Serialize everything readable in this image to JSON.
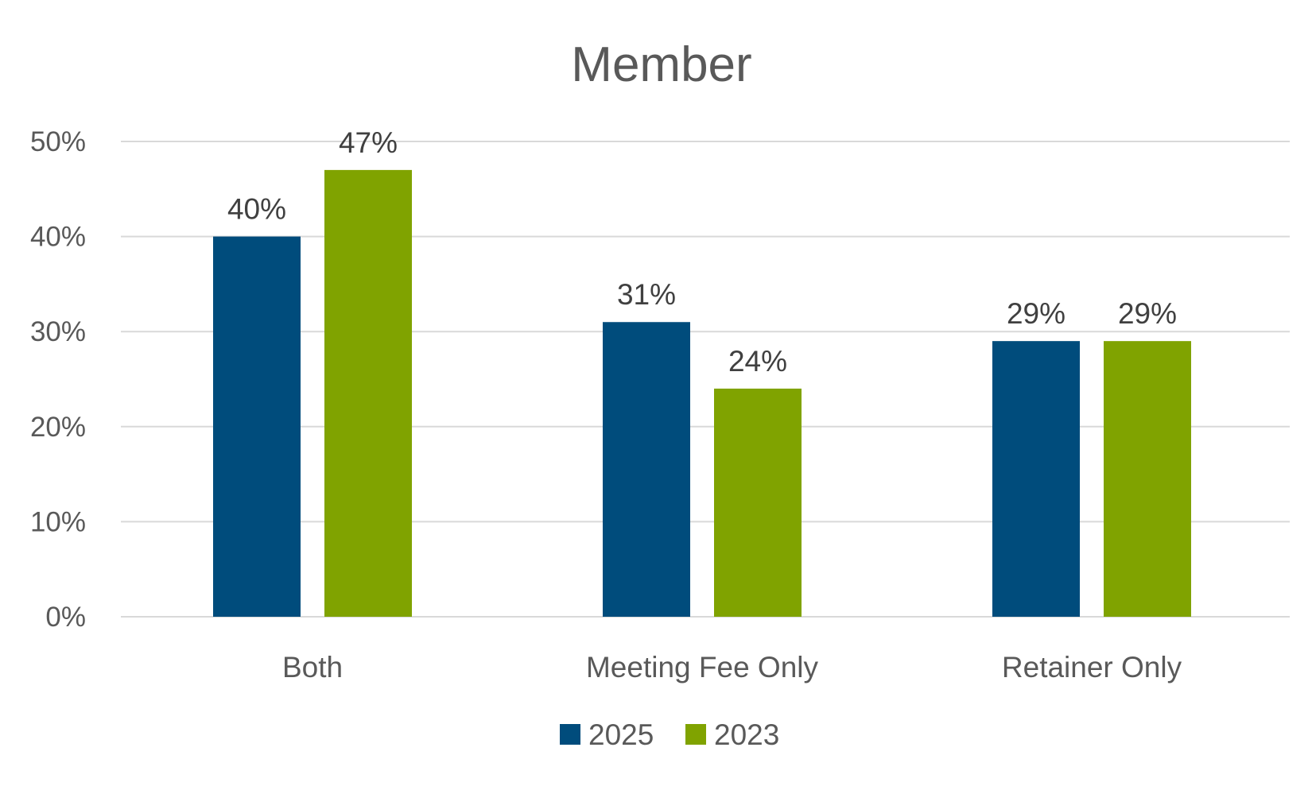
{
  "chart_data": {
    "type": "bar",
    "title": "Member",
    "categories": [
      "Both",
      "Meeting Fee Only",
      "Retainer Only"
    ],
    "series": [
      {
        "name": "2025",
        "values": [
          40,
          31,
          29
        ],
        "color": "#004c7c"
      },
      {
        "name": "2023",
        "values": [
          47,
          24,
          29
        ],
        "color": "#80a300"
      }
    ],
    "value_format": "percent",
    "ylim": [
      0,
      50
    ],
    "yticks": [
      0,
      10,
      20,
      30,
      40,
      50
    ],
    "grid": true,
    "legend_position": "bottom",
    "data_labels": true
  }
}
